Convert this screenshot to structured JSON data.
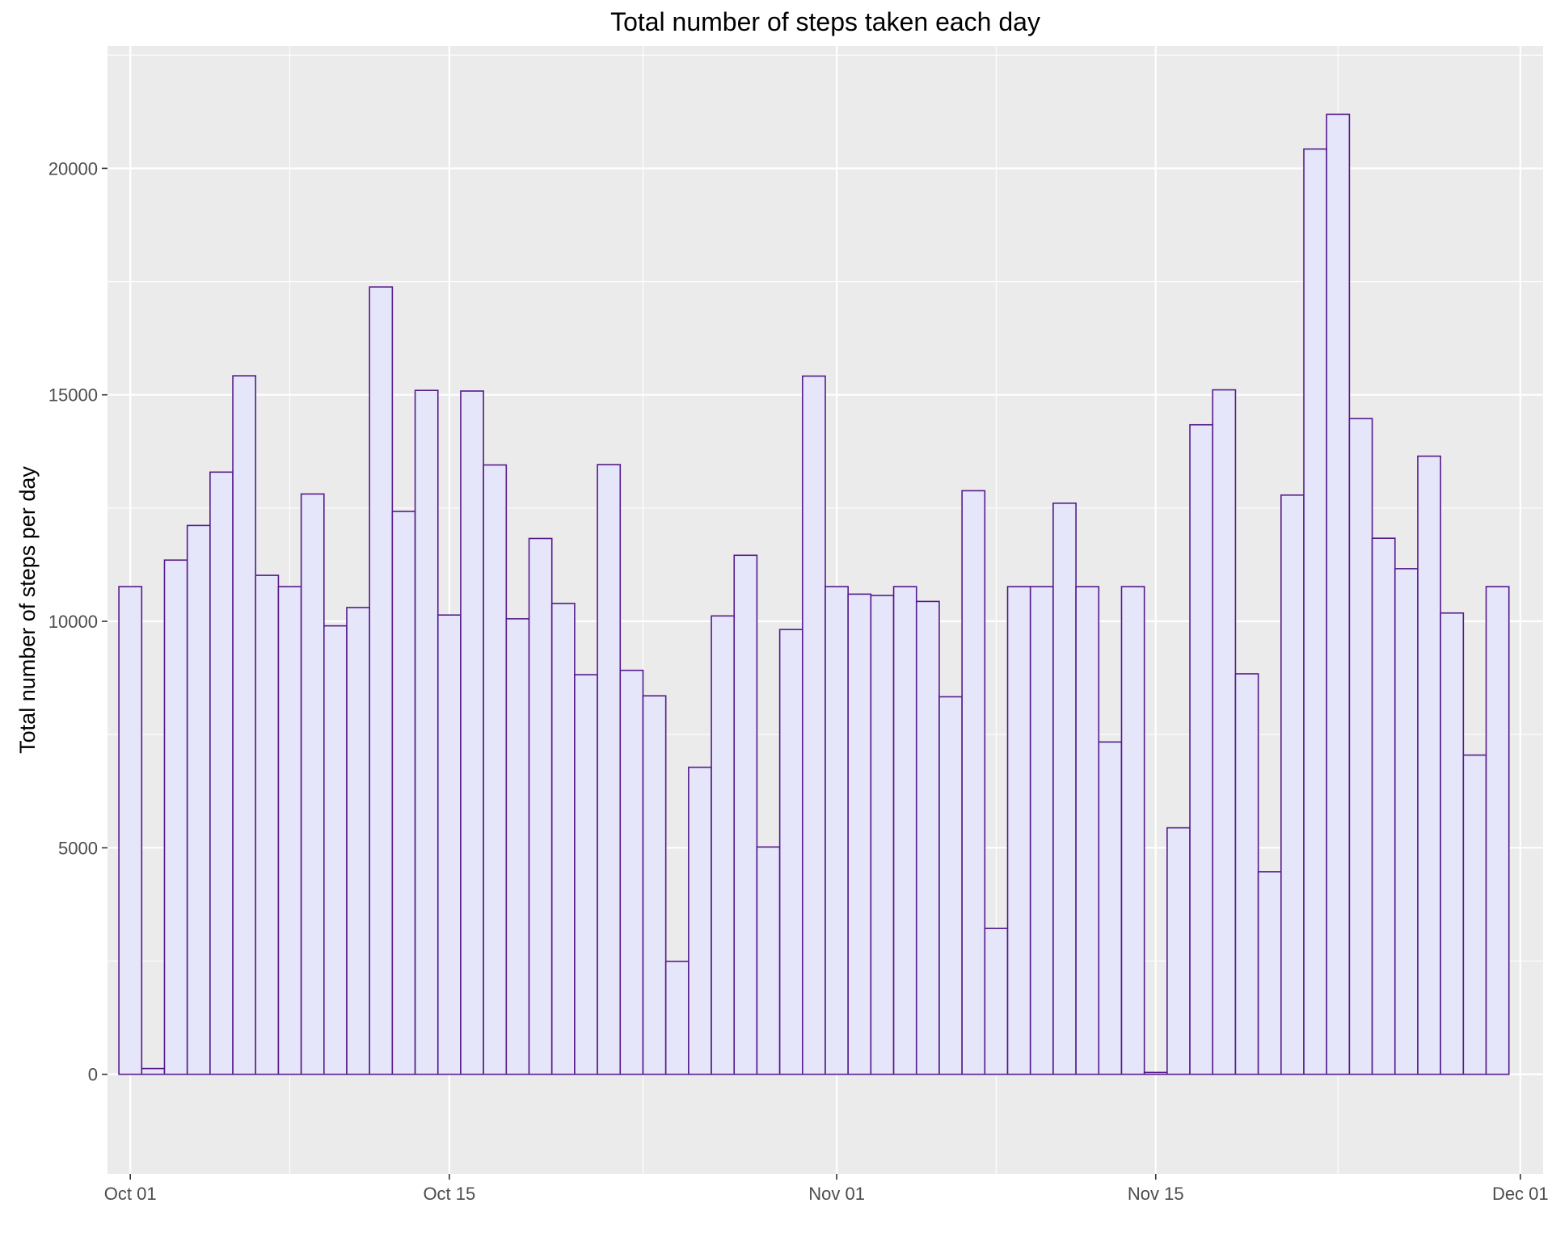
{
  "chart_data": {
    "type": "bar",
    "title": "Total number of steps taken each day",
    "xlabel": "",
    "ylabel": "Total number of steps per day",
    "x_tick_labels": [
      "Oct 01",
      "Oct 15",
      "Nov 01",
      "Nov 15",
      "Dec 01"
    ],
    "x_tick_dates": [
      "2012-10-01",
      "2012-10-15",
      "2012-11-01",
      "2012-11-15",
      "2012-12-01"
    ],
    "xlim": [
      "2012-09-30",
      "2012-12-02"
    ],
    "y_ticks": [
      0,
      5000,
      10000,
      15000,
      20000
    ],
    "y_tick_labels": [
      "0",
      "5000",
      "10000",
      "15000",
      "20000"
    ],
    "ylim": [
      -2200,
      22700
    ],
    "grid": true,
    "colors": {
      "panel_background": "#ebebeb",
      "grid": "#ffffff",
      "bar_fill": "#e6e6fa",
      "bar_outline": "#551a8b",
      "tick_text": "#4d4d4d"
    },
    "dates": [
      "2012-10-01",
      "2012-10-02",
      "2012-10-03",
      "2012-10-04",
      "2012-10-05",
      "2012-10-06",
      "2012-10-07",
      "2012-10-08",
      "2012-10-09",
      "2012-10-10",
      "2012-10-11",
      "2012-10-12",
      "2012-10-13",
      "2012-10-14",
      "2012-10-15",
      "2012-10-16",
      "2012-10-17",
      "2012-10-18",
      "2012-10-19",
      "2012-10-20",
      "2012-10-21",
      "2012-10-22",
      "2012-10-23",
      "2012-10-24",
      "2012-10-25",
      "2012-10-26",
      "2012-10-27",
      "2012-10-28",
      "2012-10-29",
      "2012-10-30",
      "2012-10-31",
      "2012-11-01",
      "2012-11-02",
      "2012-11-03",
      "2012-11-04",
      "2012-11-05",
      "2012-11-06",
      "2012-11-07",
      "2012-11-08",
      "2012-11-09",
      "2012-11-10",
      "2012-11-11",
      "2012-11-12",
      "2012-11-13",
      "2012-11-14",
      "2012-11-15",
      "2012-11-16",
      "2012-11-17",
      "2012-11-18",
      "2012-11-19",
      "2012-11-20",
      "2012-11-21",
      "2012-11-22",
      "2012-11-23",
      "2012-11-24",
      "2012-11-25",
      "2012-11-26",
      "2012-11-27",
      "2012-11-28",
      "2012-11-29",
      "2012-11-30"
    ],
    "values": [
      10766,
      126,
      11352,
      12116,
      13294,
      15420,
      11015,
      10766,
      12811,
      9900,
      10304,
      17382,
      12426,
      15098,
      10139,
      15084,
      13452,
      10056,
      11829,
      10395,
      8821,
      13460,
      8918,
      8355,
      2492,
      6778,
      10119,
      11458,
      5018,
      9819,
      15414,
      10766,
      10600,
      10571,
      10766,
      10439,
      8334,
      12883,
      3219,
      10766,
      10766,
      12608,
      10765,
      7336,
      10766,
      41,
      5441,
      14339,
      15110,
      8841,
      4472,
      12787,
      20427,
      21194,
      14478,
      11834,
      11162,
      13646,
      10183,
      7047,
      10766
    ]
  }
}
